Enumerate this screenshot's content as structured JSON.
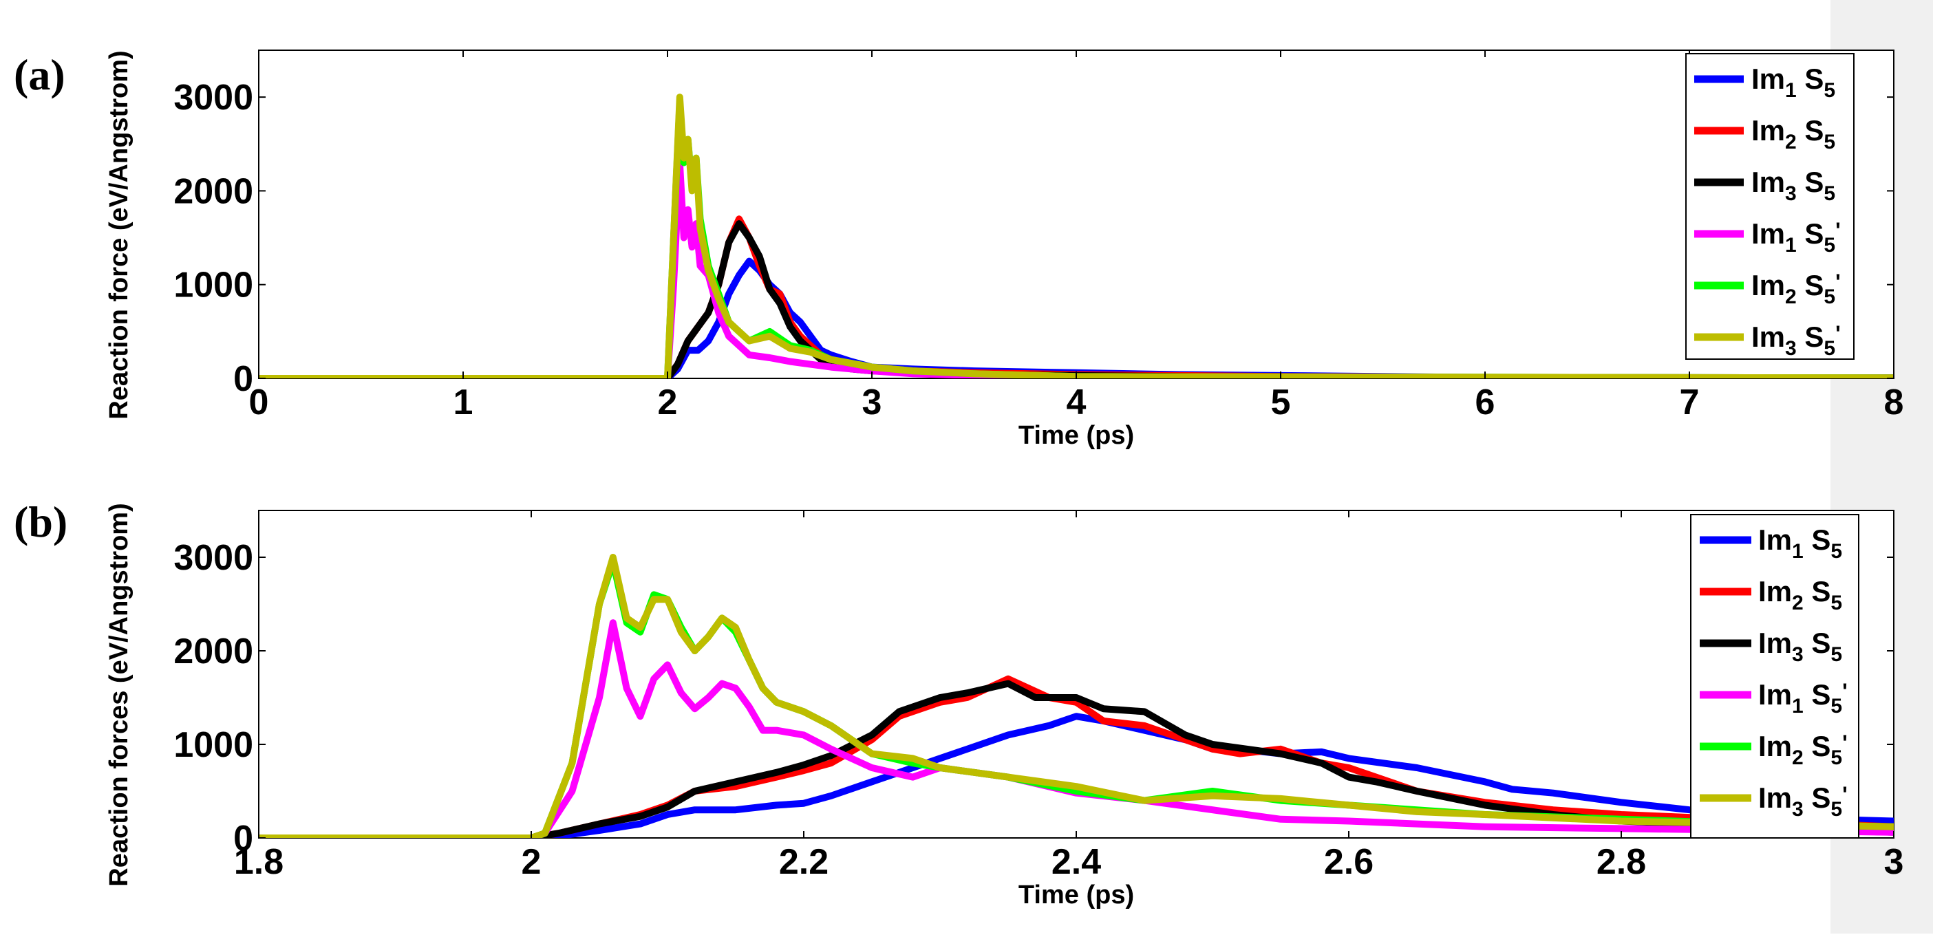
{
  "figure": {
    "side_strip_color": "#f0f0f0"
  },
  "chart_data": [
    {
      "type": "line",
      "panel_label": "(a)",
      "xlabel": "Time (ps)",
      "ylabel": "Reaction force (eV/Angstrom)",
      "xlim": [
        0,
        8
      ],
      "ylim": [
        0,
        3500
      ],
      "xticks": [
        0,
        1,
        2,
        3,
        4,
        5,
        6,
        7,
        8
      ],
      "xtick_labels": [
        "0",
        "1",
        "2",
        "3",
        "4",
        "5",
        "6",
        "7",
        "8"
      ],
      "yticks": [
        0,
        1000,
        2000,
        3000
      ],
      "ytick_labels": [
        "0",
        "1000",
        "2000",
        "3000"
      ],
      "grid": false,
      "legend_position": "top-right",
      "series": [
        {
          "name": "Im1 S5",
          "label_main": "Im",
          "label_sub1": "1",
          "label_mid": " S",
          "label_sub2": "5",
          "label_prime": "",
          "color": "#0000ff",
          "x": [
            0,
            2.0,
            2.05,
            2.1,
            2.15,
            2.2,
            2.25,
            2.3,
            2.35,
            2.4,
            2.45,
            2.5,
            2.55,
            2.6,
            2.65,
            2.7,
            2.75,
            2.8,
            2.9,
            3.0,
            3.2,
            3.5,
            4.0,
            4.5,
            5.0,
            6.0,
            8.0
          ],
          "y": [
            0,
            0,
            100,
            300,
            300,
            400,
            600,
            900,
            1100,
            1250,
            1150,
            1000,
            900,
            700,
            600,
            450,
            300,
            250,
            180,
            120,
            100,
            80,
            60,
            40,
            30,
            10,
            5
          ]
        },
        {
          "name": "Im2 S5",
          "label_main": "Im",
          "label_sub1": "2",
          "label_mid": " S",
          "label_sub2": "5",
          "label_prime": "",
          "color": "#ff0000",
          "x": [
            0,
            2.0,
            2.05,
            2.1,
            2.15,
            2.2,
            2.25,
            2.3,
            2.35,
            2.4,
            2.45,
            2.5,
            2.55,
            2.6,
            2.65,
            2.7,
            2.75,
            2.8,
            2.9,
            3.0,
            3.2,
            3.5,
            4.0,
            4.5,
            5.0,
            6.0,
            8.0
          ],
          "y": [
            0,
            0,
            150,
            400,
            550,
            700,
            1000,
            1450,
            1700,
            1500,
            1200,
            950,
            900,
            600,
            450,
            350,
            250,
            200,
            130,
            100,
            80,
            60,
            40,
            30,
            20,
            10,
            5
          ]
        },
        {
          "name": "Im3 S5",
          "label_main": "Im",
          "label_sub1": "3",
          "label_mid": " S",
          "label_sub2": "5",
          "label_prime": "",
          "color": "#000000",
          "x": [
            0,
            2.0,
            2.05,
            2.1,
            2.15,
            2.2,
            2.25,
            2.3,
            2.35,
            2.4,
            2.45,
            2.5,
            2.55,
            2.6,
            2.65,
            2.7,
            2.75,
            2.8,
            2.9,
            3.0,
            3.2,
            3.5,
            4.0,
            4.5,
            5.0,
            6.0,
            8.0
          ],
          "y": [
            0,
            0,
            150,
            400,
            550,
            700,
            1000,
            1450,
            1650,
            1500,
            1300,
            950,
            800,
            550,
            400,
            300,
            200,
            150,
            100,
            80,
            60,
            40,
            30,
            20,
            10,
            5,
            5
          ]
        },
        {
          "name": "Im1 S5'",
          "label_main": "Im",
          "label_sub1": "1",
          "label_mid": " S",
          "label_sub2": "5",
          "label_prime": "'",
          "color": "#ff00ff",
          "x": [
            0,
            2.0,
            2.03,
            2.06,
            2.08,
            2.1,
            2.12,
            2.14,
            2.16,
            2.2,
            2.25,
            2.3,
            2.35,
            2.4,
            2.5,
            2.6,
            2.7,
            2.8,
            3.0,
            3.2,
            3.5,
            4.0,
            8.0
          ],
          "y": [
            0,
            0,
            1000,
            2300,
            1500,
            1800,
            1400,
            1650,
            1200,
            1100,
            700,
            450,
            350,
            250,
            220,
            180,
            150,
            120,
            80,
            50,
            30,
            15,
            5
          ]
        },
        {
          "name": "Im2 S5'",
          "label_main": "Im",
          "label_sub1": "2",
          "label_mid": " S",
          "label_sub2": "5",
          "label_prime": "'",
          "color": "#00ff00",
          "x": [
            0,
            2.0,
            2.03,
            2.06,
            2.08,
            2.1,
            2.12,
            2.14,
            2.16,
            2.2,
            2.25,
            2.3,
            2.35,
            2.4,
            2.5,
            2.6,
            2.7,
            2.8,
            3.0,
            3.2,
            3.5,
            4.0,
            8.0
          ],
          "y": [
            0,
            0,
            1500,
            2950,
            2300,
            2550,
            2050,
            2350,
            1700,
            1200,
            900,
            600,
            500,
            400,
            500,
            350,
            300,
            200,
            120,
            80,
            50,
            20,
            5
          ]
        },
        {
          "name": "Im3 S5'",
          "label_main": "Im",
          "label_sub1": "3",
          "label_mid": " S",
          "label_sub2": "5",
          "label_prime": "'",
          "color": "#bdbd00",
          "x": [
            0,
            2.0,
            2.03,
            2.06,
            2.08,
            2.1,
            2.12,
            2.14,
            2.16,
            2.2,
            2.25,
            2.3,
            2.35,
            2.4,
            2.5,
            2.6,
            2.7,
            2.8,
            3.0,
            3.2,
            3.5,
            4.0,
            8.0
          ],
          "y": [
            0,
            0,
            1500,
            3000,
            2350,
            2550,
            2000,
            2350,
            1600,
            1150,
            850,
            600,
            500,
            400,
            450,
            320,
            280,
            200,
            120,
            80,
            50,
            20,
            5
          ]
        }
      ]
    },
    {
      "type": "line",
      "panel_label": "(b)",
      "xlabel": "Time (ps)",
      "ylabel": "Reaction forces (eV/Angstrom)",
      "xlim": [
        1.8,
        3.0
      ],
      "ylim": [
        0,
        3500
      ],
      "xticks": [
        1.8,
        2.0,
        2.2,
        2.4,
        2.6,
        2.8,
        3.0
      ],
      "xtick_labels": [
        "1.8",
        "2",
        "2.2",
        "2.4",
        "2.6",
        "2.8",
        "3"
      ],
      "yticks": [
        0,
        1000,
        2000,
        3000
      ],
      "ytick_labels": [
        "0",
        "1000",
        "2000",
        "3000"
      ],
      "grid": false,
      "legend_position": "top-right",
      "series": [
        {
          "name": "Im1 S5",
          "label_main": "Im",
          "label_sub1": "1",
          "label_mid": " S",
          "label_sub2": "5",
          "label_prime": "",
          "color": "#0000ff",
          "x": [
            1.8,
            2.0,
            2.02,
            2.05,
            2.08,
            2.1,
            2.12,
            2.15,
            2.18,
            2.2,
            2.22,
            2.25,
            2.27,
            2.3,
            2.32,
            2.35,
            2.38,
            2.4,
            2.42,
            2.45,
            2.48,
            2.5,
            2.52,
            2.55,
            2.58,
            2.6,
            2.65,
            2.7,
            2.72,
            2.75,
            2.8,
            2.85,
            2.9,
            2.95,
            3.0
          ],
          "y": [
            0,
            0,
            20,
            80,
            150,
            250,
            300,
            300,
            350,
            370,
            450,
            600,
            700,
            850,
            950,
            1100,
            1200,
            1300,
            1250,
            1150,
            1050,
            950,
            950,
            900,
            920,
            850,
            750,
            600,
            520,
            480,
            380,
            300,
            250,
            200,
            180
          ]
        },
        {
          "name": "Im2 S5",
          "label_main": "Im",
          "label_sub1": "2",
          "label_mid": " S",
          "label_sub2": "5",
          "label_prime": "",
          "color": "#ff0000",
          "x": [
            1.8,
            2.0,
            2.02,
            2.05,
            2.08,
            2.1,
            2.12,
            2.15,
            2.18,
            2.2,
            2.22,
            2.25,
            2.27,
            2.3,
            2.32,
            2.35,
            2.38,
            2.4,
            2.42,
            2.45,
            2.48,
            2.5,
            2.52,
            2.55,
            2.58,
            2.6,
            2.65,
            2.7,
            2.75,
            2.8,
            2.85,
            2.9,
            2.95,
            3.0
          ],
          "y": [
            0,
            0,
            50,
            150,
            250,
            350,
            500,
            550,
            650,
            720,
            800,
            1050,
            1300,
            1450,
            1500,
            1700,
            1500,
            1450,
            1250,
            1200,
            1050,
            950,
            900,
            950,
            800,
            750,
            500,
            380,
            300,
            250,
            220,
            180,
            150,
            120
          ]
        },
        {
          "name": "Im3 S5",
          "label_main": "Im",
          "label_sub1": "3",
          "label_mid": " S",
          "label_sub2": "5",
          "label_prime": "",
          "color": "#000000",
          "x": [
            1.8,
            2.0,
            2.02,
            2.05,
            2.08,
            2.1,
            2.12,
            2.15,
            2.18,
            2.2,
            2.22,
            2.25,
            2.27,
            2.3,
            2.32,
            2.35,
            2.37,
            2.4,
            2.42,
            2.45,
            2.48,
            2.5,
            2.55,
            2.58,
            2.6,
            2.62,
            2.65,
            2.7,
            2.75,
            2.8,
            2.85,
            2.9,
            2.95,
            3.0
          ],
          "y": [
            0,
            0,
            50,
            150,
            230,
            330,
            500,
            600,
            700,
            780,
            880,
            1100,
            1350,
            1500,
            1550,
            1650,
            1500,
            1500,
            1380,
            1350,
            1100,
            1000,
            900,
            800,
            650,
            600,
            500,
            350,
            250,
            180,
            150,
            100,
            80,
            60
          ]
        },
        {
          "name": "Im1 S5'",
          "label_main": "Im",
          "label_sub1": "1",
          "label_mid": " S",
          "label_sub2": "5",
          "label_prime": "'",
          "color": "#ff00ff",
          "x": [
            1.8,
            2.0,
            2.01,
            2.03,
            2.05,
            2.06,
            2.07,
            2.08,
            2.09,
            2.1,
            2.11,
            2.12,
            2.13,
            2.14,
            2.15,
            2.16,
            2.17,
            2.18,
            2.2,
            2.22,
            2.25,
            2.28,
            2.3,
            2.35,
            2.4,
            2.45,
            2.5,
            2.55,
            2.6,
            2.65,
            2.7,
            2.8,
            2.9,
            3.0
          ],
          "y": [
            0,
            0,
            50,
            500,
            1500,
            2300,
            1600,
            1300,
            1700,
            1850,
            1550,
            1380,
            1500,
            1650,
            1600,
            1400,
            1150,
            1150,
            1100,
            950,
            750,
            650,
            750,
            650,
            480,
            400,
            300,
            200,
            180,
            150,
            120,
            100,
            80,
            60
          ]
        },
        {
          "name": "Im2 S5'",
          "label_main": "Im",
          "label_sub1": "2",
          "label_mid": " S",
          "label_sub2": "5",
          "label_prime": "'",
          "color": "#00ff00",
          "x": [
            1.8,
            2.0,
            2.01,
            2.03,
            2.05,
            2.06,
            2.07,
            2.08,
            2.09,
            2.1,
            2.11,
            2.12,
            2.13,
            2.14,
            2.15,
            2.16,
            2.17,
            2.18,
            2.2,
            2.22,
            2.25,
            2.28,
            2.3,
            2.35,
            2.4,
            2.45,
            2.5,
            2.55,
            2.6,
            2.65,
            2.7,
            2.8,
            2.9,
            3.0
          ],
          "y": [
            0,
            0,
            50,
            800,
            2500,
            2950,
            2300,
            2200,
            2600,
            2550,
            2250,
            2000,
            2150,
            2350,
            2200,
            1900,
            1600,
            1450,
            1350,
            1200,
            900,
            800,
            750,
            650,
            500,
            400,
            500,
            400,
            350,
            300,
            250,
            200,
            150,
            120
          ]
        },
        {
          "name": "Im3 S5'",
          "label_main": "Im",
          "label_sub1": "3",
          "label_mid": " S",
          "label_sub2": "5",
          "label_prime": "'",
          "color": "#bdbd00",
          "x": [
            1.8,
            2.0,
            2.01,
            2.03,
            2.05,
            2.06,
            2.07,
            2.08,
            2.09,
            2.1,
            2.11,
            2.12,
            2.13,
            2.14,
            2.15,
            2.16,
            2.17,
            2.18,
            2.2,
            2.22,
            2.25,
            2.28,
            2.3,
            2.35,
            2.4,
            2.45,
            2.5,
            2.55,
            2.6,
            2.65,
            2.7,
            2.8,
            2.9,
            3.0
          ],
          "y": [
            0,
            0,
            50,
            800,
            2500,
            3000,
            2350,
            2250,
            2550,
            2550,
            2200,
            2000,
            2150,
            2350,
            2250,
            1900,
            1600,
            1450,
            1350,
            1200,
            900,
            850,
            750,
            650,
            550,
            400,
            450,
            420,
            350,
            280,
            250,
            180,
            150,
            120
          ]
        }
      ]
    }
  ]
}
